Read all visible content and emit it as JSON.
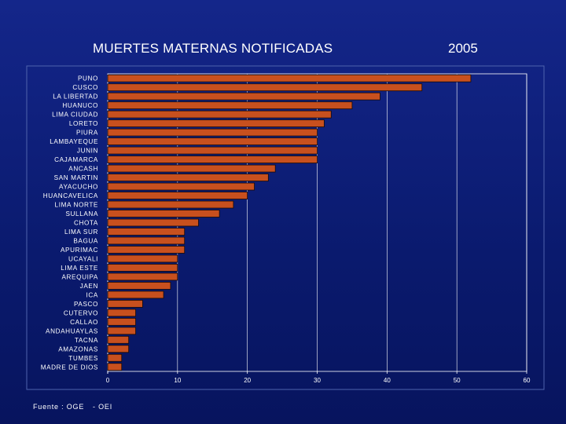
{
  "header": {
    "title": "MUERTES MATERNAS NOTIFICADAS",
    "year": "2005"
  },
  "footer": {
    "source": "Fuente : OGE",
    "source_suffix": "- OEI"
  },
  "chart_data": {
    "type": "bar",
    "orientation": "horizontal",
    "title": "MUERTES MATERNAS NOTIFICADAS 2005",
    "xlabel": "",
    "ylabel": "",
    "xlim": [
      0,
      60
    ],
    "ticks": [
      0,
      10,
      20,
      30,
      40,
      50,
      60
    ],
    "grid": true,
    "bar_color": "#c8501e",
    "categories": [
      "PUNO",
      "CUSCO",
      "LA LIBERTAD",
      "HUANUCO",
      "LIMA CIUDAD",
      "LORETO",
      "PIURA",
      "LAMBAYEQUE",
      "JUNIN",
      "CAJAMARCA",
      "ANCASH",
      "SAN MARTIN",
      "AYACUCHO",
      "HUANCAVELICA",
      "LIMA NORTE",
      "SULLANA",
      "CHOTA",
      "LIMA SUR",
      "BAGUA",
      "APURIMAC",
      "UCAYALI",
      "LIMA ESTE",
      "AREQUIPA",
      "JAEN",
      "ICA",
      "PASCO",
      "CUTERVO",
      "CALLAO",
      "ANDAHUAYLAS",
      "TACNA",
      "AMAZONAS",
      "TUMBES",
      "MADRE DE DIOS"
    ],
    "values": [
      52,
      45,
      39,
      35,
      32,
      31,
      30,
      30,
      30,
      30,
      24,
      23,
      21,
      20,
      18,
      16,
      13,
      11,
      11,
      11,
      10,
      10,
      10,
      9,
      8,
      5,
      4,
      4,
      4,
      3,
      3,
      2,
      2
    ]
  }
}
